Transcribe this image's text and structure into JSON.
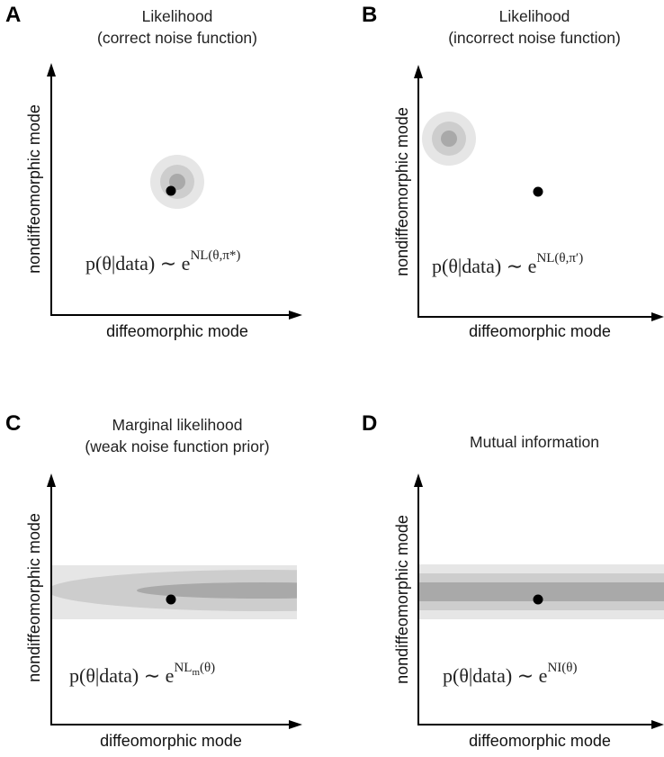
{
  "panels": [
    {
      "letter": "A",
      "title_line1": "Likelihood",
      "title_line2": "(correct noise function)",
      "y_label": "nondiffeomorphic mode",
      "x_label": "diffeomorphic mode",
      "formula": {
        "lhs": "p(θ|data) ∼ e",
        "exponent": "NL(θ,π*)",
        "exponent_sub": ""
      }
    },
    {
      "letter": "B",
      "title_line1": "Likelihood",
      "title_line2": "(incorrect noise function)",
      "y_label": "nondiffeomorphic mode",
      "x_label": "diffeomorphic mode",
      "formula": {
        "lhs": "p(θ|data) ∼ e",
        "exponent": "NL(θ,π′)",
        "exponent_sub": ""
      }
    },
    {
      "letter": "C",
      "title_line1": "Marginal likelihood",
      "title_line2": "(weak noise function prior)",
      "y_label": "nondiffeomorphic mode",
      "x_label": "diffeomorphic mode",
      "formula": {
        "lhs": "p(θ|data) ∼ e",
        "exponent": "NL",
        "exponent_sub": "m",
        "exponent_tail": "(θ)"
      }
    },
    {
      "letter": "D",
      "title_line1": "",
      "title_line2": "Mutual information",
      "y_label": "nondiffeomorphic mode",
      "x_label": "diffeomorphic mode",
      "formula": {
        "lhs": "p(θ|data) ∼ e",
        "exponent": "NI(θ)",
        "exponent_sub": ""
      }
    }
  ],
  "colors": {
    "light": "#e6e6e6",
    "mid": "#cdcdcd",
    "dark": "#a9a9a9",
    "dot": "#000000"
  }
}
